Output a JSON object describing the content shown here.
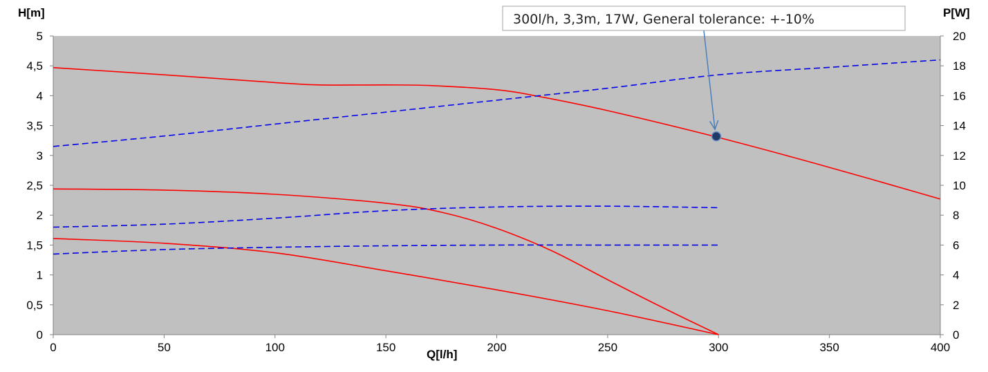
{
  "chart_data": {
    "type": "line",
    "xlabel": "Q[l/h]",
    "ylabel_left": "H[m]",
    "ylabel_right": "P[W]",
    "xlim": [
      0,
      400
    ],
    "ylim_left": [
      0,
      5
    ],
    "ylim_right": [
      0,
      20
    ],
    "x_ticks": [
      "0",
      "50",
      "100",
      "150",
      "200",
      "250",
      "300",
      "350",
      "400"
    ],
    "y_left_ticks": [
      "0",
      "0,5",
      "1",
      "1,5",
      "2",
      "2,5",
      "3",
      "3,5",
      "4",
      "4,5",
      "5"
    ],
    "y_right_ticks": [
      "0",
      "2",
      "4",
      "6",
      "8",
      "10",
      "12",
      "14",
      "16",
      "18",
      "20"
    ],
    "plot_background": "#c0c0c0",
    "head_curve_color": "#ff0000",
    "power_curve_color": "#0000ee",
    "grid": false,
    "legend": "none",
    "series": [
      {
        "axis": "left",
        "style": "solid",
        "color": "#ff0000",
        "x": [
          0,
          50,
          100,
          120,
          150,
          170,
          200,
          220,
          250,
          300,
          350,
          400
        ],
        "y": [
          4.47,
          4.35,
          4.22,
          4.18,
          4.18,
          4.17,
          4.1,
          3.98,
          3.75,
          3.3,
          2.8,
          2.27
        ]
      },
      {
        "axis": "left",
        "style": "solid",
        "color": "#ff0000",
        "x": [
          0,
          50,
          100,
          150,
          175,
          200,
          225,
          250,
          275,
          300
        ],
        "y": [
          2.44,
          2.42,
          2.35,
          2.2,
          2.05,
          1.78,
          1.4,
          0.92,
          0.45,
          0
        ]
      },
      {
        "axis": "left",
        "style": "solid",
        "color": "#ff0000",
        "x": [
          0,
          50,
          100,
          150,
          200,
          250,
          300
        ],
        "y": [
          1.61,
          1.53,
          1.37,
          1.07,
          0.75,
          0.4,
          0
        ]
      },
      {
        "axis": "right",
        "style": "dashed",
        "color": "#0000ee",
        "x": [
          0,
          50,
          100,
          150,
          200,
          250,
          300,
          350,
          400
        ],
        "y": [
          12.6,
          13.3,
          14.1,
          14.9,
          15.7,
          16.5,
          17.4,
          17.9,
          18.4
        ]
      },
      {
        "axis": "right",
        "style": "dashed",
        "color": "#0000ee",
        "x": [
          0,
          50,
          100,
          150,
          200,
          250,
          300
        ],
        "y": [
          7.2,
          7.4,
          7.8,
          8.3,
          8.55,
          8.6,
          8.5
        ]
      },
      {
        "axis": "right",
        "style": "dashed",
        "color": "#0000ee",
        "x": [
          0,
          50,
          100,
          150,
          200,
          250,
          300
        ],
        "y": [
          5.4,
          5.7,
          5.85,
          5.95,
          6.0,
          6.0,
          6.0
        ]
      }
    ],
    "marker": {
      "x": 299,
      "y": 3.32,
      "color": "#1f3a66"
    },
    "annotation": {
      "text": "300l/h, 3,3m, 17W, General tolerance: +-10%",
      "arrow_color": "#4a7ebb"
    }
  }
}
